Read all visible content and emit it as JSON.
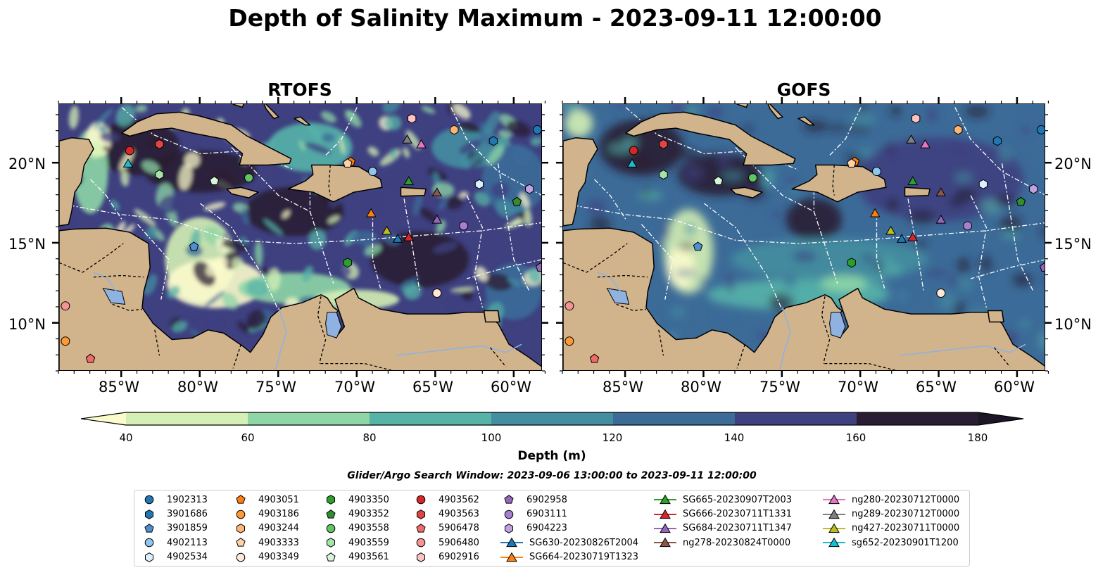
{
  "title": "Depth of Salinity Maximum - 2023-09-11 12:00:00",
  "panels": [
    {
      "title": "RTOFS",
      "model": "rtofs"
    },
    {
      "title": "GOFS",
      "model": "gofs"
    }
  ],
  "x_ticks": [
    "85°W",
    "80°W",
    "75°W",
    "70°W",
    "65°W",
    "60°W"
  ],
  "y_ticks": [
    "20°N",
    "15°N",
    "10°N"
  ],
  "map_extent": {
    "lon_min": -89,
    "lon_max": -58.2,
    "lat_min": 7,
    "lat_max": 23.7
  },
  "chart_data": {
    "type": "heatmap",
    "variable": "Depth of Salinity Maximum",
    "colorbar": {
      "label": "Depth (m)",
      "ticks": [
        "40",
        "60",
        "80",
        "100",
        "120",
        "140",
        "160",
        "180"
      ],
      "levels": [
        40,
        60,
        80,
        100,
        120,
        140,
        160,
        180
      ],
      "extend": "both",
      "colors": [
        "#fbfbcc",
        "#d4f0b4",
        "#8ed6a6",
        "#55b3a8",
        "#438ea0",
        "#3c6b98",
        "#3e4080",
        "#2a1d33",
        "#1c1525"
      ]
    }
  },
  "search_window": "Glider/Argo Search Window: 2023-09-06 13:00:00 to 2023-09-11 12:00:00",
  "legend": {
    "columns": [
      [
        {
          "label": "1902313",
          "marker": "circle",
          "color": "#1f77b4"
        },
        {
          "label": "3901686",
          "marker": "hexagon",
          "color": "#1f77b4"
        },
        {
          "label": "3901859",
          "marker": "pentagon",
          "color": "#4f8fd0"
        },
        {
          "label": "4902113",
          "marker": "circle",
          "color": "#8ec6ee"
        },
        {
          "label": "4902534",
          "marker": "hexagon",
          "color": "#dcefff"
        }
      ],
      [
        {
          "label": "4903051",
          "marker": "pentagon",
          "color": "#ff7f0e"
        },
        {
          "label": "4903186",
          "marker": "circle",
          "color": "#ff9933"
        },
        {
          "label": "4903244",
          "marker": "hexagon",
          "color": "#ffb573"
        },
        {
          "label": "4903333",
          "marker": "pentagon",
          "color": "#ffd2a6"
        },
        {
          "label": "4903349",
          "marker": "circle",
          "color": "#ffe9d6"
        }
      ],
      [
        {
          "label": "4903350",
          "marker": "hexagon",
          "color": "#2ca02c"
        },
        {
          "label": "4903352",
          "marker": "pentagon",
          "color": "#2f8f2f"
        },
        {
          "label": "4903558",
          "marker": "circle",
          "color": "#62c462"
        },
        {
          "label": "4903559",
          "marker": "hexagon",
          "color": "#a6e3a6"
        },
        {
          "label": "4903561",
          "marker": "pentagon",
          "color": "#d9f5d9"
        }
      ],
      [
        {
          "label": "4903562",
          "marker": "circle",
          "color": "#d62728"
        },
        {
          "label": "4903563",
          "marker": "hexagon",
          "color": "#e04545"
        },
        {
          "label": "5906478",
          "marker": "pentagon",
          "color": "#f06a6a"
        },
        {
          "label": "5906480",
          "marker": "circle",
          "color": "#f59494"
        },
        {
          "label": "6902916",
          "marker": "hexagon",
          "color": "#fbc3c3"
        }
      ],
      [
        {
          "label": "6902958",
          "marker": "pentagon",
          "color": "#9467bd"
        },
        {
          "label": "6903111",
          "marker": "circle",
          "color": "#a77fd0"
        },
        {
          "label": "6904223",
          "marker": "hexagon",
          "color": "#c0a2e3"
        },
        {
          "label": "SG630-20230826T2004",
          "marker": "triangle-line",
          "color": "#1f77b4"
        },
        {
          "label": "SG664-20230719T1323",
          "marker": "triangle-line",
          "color": "#ff7f0e"
        }
      ],
      [
        {
          "label": "SG665-20230907T2003",
          "marker": "triangle-line",
          "color": "#2ca02c"
        },
        {
          "label": "SG666-20230711T1331",
          "marker": "triangle-line",
          "color": "#d62728"
        },
        {
          "label": "SG684-20230711T1347",
          "marker": "triangle-line",
          "color": "#9467bd"
        },
        {
          "label": "ng278-20230824T0000",
          "marker": "triangle-line",
          "color": "#8c564b"
        }
      ],
      [
        {
          "label": "ng280-20230712T0000",
          "marker": "triangle-line",
          "color": "#e377c2"
        },
        {
          "label": "ng289-20230712T0000",
          "marker": "triangle-line",
          "color": "#7f7f7f"
        },
        {
          "label": "ng427-20230711T0000",
          "marker": "triangle-line",
          "color": "#bcbd22"
        },
        {
          "label": "sg652-20230901T1200",
          "marker": "triangle-line",
          "color": "#17becf"
        }
      ]
    ]
  },
  "observations": [
    {
      "id": "1902313",
      "marker": "circle",
      "color": "#1f77b4",
      "lon": -58.5,
      "lat": 22.1
    },
    {
      "id": "3901686",
      "marker": "hexagon",
      "color": "#1f77b4",
      "lon": -61.3,
      "lat": 21.4
    },
    {
      "id": "3901859",
      "marker": "pentagon",
      "color": "#4f8fd0",
      "lon": -80.4,
      "lat": 14.8
    },
    {
      "id": "4902113",
      "marker": "circle",
      "color": "#8ec6ee",
      "lon": -69.0,
      "lat": 19.5
    },
    {
      "id": "4902534",
      "marker": "hexagon",
      "color": "#dcefff",
      "lon": -62.2,
      "lat": 18.7
    },
    {
      "id": "4903051",
      "marker": "pentagon",
      "color": "#ff7f0e",
      "lon": -70.4,
      "lat": 20.1
    },
    {
      "id": "4903186",
      "marker": "circle",
      "color": "#ff9933",
      "lon": -88.6,
      "lat": 8.9
    },
    {
      "id": "4903244",
      "marker": "hexagon",
      "color": "#ffb573",
      "lon": -63.8,
      "lat": 22.1
    },
    {
      "id": "4903333",
      "marker": "pentagon",
      "color": "#ffd2a6",
      "lon": -70.6,
      "lat": 20.0
    },
    {
      "id": "4903349",
      "marker": "circle",
      "color": "#ffe9d6",
      "lon": -64.9,
      "lat": 11.9
    },
    {
      "id": "4903350",
      "marker": "hexagon",
      "color": "#2ca02c",
      "lon": -70.6,
      "lat": 13.8
    },
    {
      "id": "4903352",
      "marker": "pentagon",
      "color": "#2f8f2f",
      "lon": -59.8,
      "lat": 17.6
    },
    {
      "id": "4903558",
      "marker": "circle",
      "color": "#62c462",
      "lon": -76.9,
      "lat": 19.1
    },
    {
      "id": "4903559",
      "marker": "hexagon",
      "color": "#a6e3a6",
      "lon": -82.6,
      "lat": 19.3
    },
    {
      "id": "4903561",
      "marker": "pentagon",
      "color": "#d9f5d9",
      "lon": -79.1,
      "lat": 18.9
    },
    {
      "id": "4903562",
      "marker": "circle",
      "color": "#d62728",
      "lon": -84.5,
      "lat": 20.8
    },
    {
      "id": "4903563",
      "marker": "hexagon",
      "color": "#e04545",
      "lon": -82.6,
      "lat": 21.2
    },
    {
      "id": "5906478",
      "marker": "pentagon",
      "color": "#f06a6a",
      "lon": -87.0,
      "lat": 7.8
    },
    {
      "id": "5906480",
      "marker": "circle",
      "color": "#f59494",
      "lon": -88.6,
      "lat": 11.1
    },
    {
      "id": "6902916",
      "marker": "hexagon",
      "color": "#fbc3c3",
      "lon": -66.5,
      "lat": 22.8
    },
    {
      "id": "6902958",
      "marker": "pentagon",
      "color": "#9467bd",
      "lon": -58.3,
      "lat": 13.5
    },
    {
      "id": "6903111",
      "marker": "circle",
      "color": "#a77fd0",
      "lon": -63.2,
      "lat": 16.1
    },
    {
      "id": "6904223",
      "marker": "hexagon",
      "color": "#c0a2e3",
      "lon": -59.0,
      "lat": 18.4
    },
    {
      "id": "SG630-20230826T2004",
      "marker": "triangle",
      "color": "#1f77b4",
      "lon": -67.4,
      "lat": 15.3
    },
    {
      "id": "SG664-20230719T1323",
      "marker": "triangle",
      "color": "#ff7f0e",
      "lon": -69.1,
      "lat": 16.9
    },
    {
      "id": "SG665-20230907T2003",
      "marker": "triangle",
      "color": "#2ca02c",
      "lon": -66.7,
      "lat": 18.9
    },
    {
      "id": "SG666-20230711T1331",
      "marker": "triangle",
      "color": "#d62728",
      "lon": -66.7,
      "lat": 15.4
    },
    {
      "id": "SG684-20230711T1347",
      "marker": "triangle",
      "color": "#9467bd",
      "lon": -64.9,
      "lat": 16.5
    },
    {
      "id": "ng278-20230824T0000",
      "marker": "triangle",
      "color": "#8c564b",
      "lon": -64.9,
      "lat": 18.2
    },
    {
      "id": "ng280-20230712T0000",
      "marker": "triangle",
      "color": "#e377c2",
      "lon": -65.9,
      "lat": 21.2
    },
    {
      "id": "ng289-20230712T0000",
      "marker": "triangle",
      "color": "#7f7f7f",
      "lon": -66.8,
      "lat": 21.5
    },
    {
      "id": "ng427-20230711T0000",
      "marker": "triangle",
      "color": "#bcbd22",
      "lon": -68.1,
      "lat": 15.8
    },
    {
      "id": "sg652-20230901T1200",
      "marker": "triangle",
      "color": "#17becf",
      "lon": -84.6,
      "lat": 20.0
    }
  ]
}
